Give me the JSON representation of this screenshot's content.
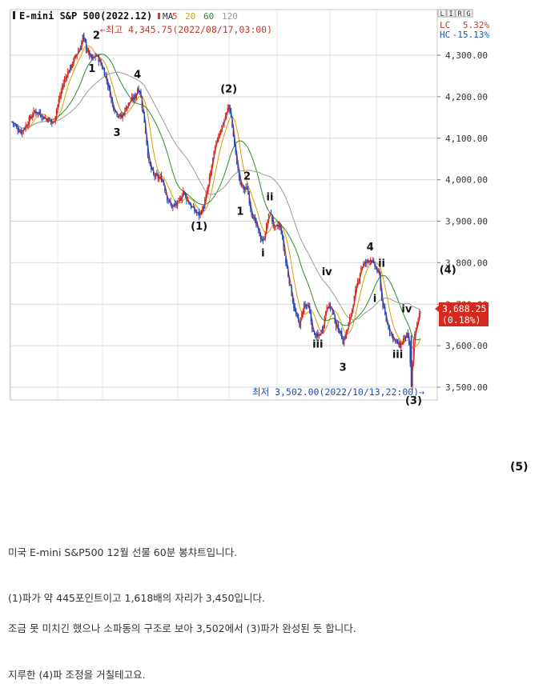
{
  "chart_data": {
    "type": "candlestick",
    "title": "E-mini S&P 500(2022.12)",
    "ma_label": "MA",
    "moving_averages": [
      {
        "period": "5",
        "color": "#d93a2b"
      },
      {
        "period": "20",
        "color": "#d6a000"
      },
      {
        "period": "60",
        "color": "#2e8b2e"
      },
      {
        "period": "120",
        "color": "#9a9a9a"
      }
    ],
    "top_right_tags": [
      "L",
      "I",
      "R",
      "G"
    ],
    "lc_label": "LC",
    "lc_value": "5.32%",
    "hc_label": "HC",
    "hc_value": "-15.13%",
    "high_annotation": "←최고 4,345.75(2022/08/17,03:00)",
    "low_annotation": "최저 3,502.00(2022/10/13,22:00)→",
    "last_price": "3,688.25",
    "last_change": "(0.18%)",
    "ylim": [
      3500,
      4400
    ],
    "y_ticks": [
      "4,300.00",
      "4,200.00",
      "4,100.00",
      "4,000.00",
      "3,900.00",
      "3,800.00",
      "3,700.00",
      "3,600.00",
      "3,500.00"
    ],
    "y_tick_values": [
      4300,
      4200,
      4100,
      4000,
      3900,
      3800,
      3700,
      3600,
      3500
    ],
    "price_path": [
      [
        0,
        4140
      ],
      [
        4,
        4125
      ],
      [
        8,
        4115
      ],
      [
        12,
        4130
      ],
      [
        16,
        4150
      ],
      [
        20,
        4165
      ],
      [
        24,
        4160
      ],
      [
        28,
        4150
      ],
      [
        32,
        4145
      ],
      [
        36,
        4135
      ],
      [
        40,
        4180
      ],
      [
        44,
        4225
      ],
      [
        48,
        4255
      ],
      [
        52,
        4275
      ],
      [
        56,
        4300
      ],
      [
        60,
        4320
      ],
      [
        62,
        4345
      ],
      [
        66,
        4310
      ],
      [
        70,
        4290
      ],
      [
        74,
        4300
      ],
      [
        76,
        4290
      ],
      [
        80,
        4265
      ],
      [
        84,
        4230
      ],
      [
        88,
        4180
      ],
      [
        92,
        4160
      ],
      [
        96,
        4150
      ],
      [
        100,
        4175
      ],
      [
        104,
        4190
      ],
      [
        108,
        4200
      ],
      [
        110,
        4220
      ],
      [
        112,
        4215
      ],
      [
        116,
        4140
      ],
      [
        120,
        4040
      ],
      [
        124,
        4010
      ],
      [
        128,
        4005
      ],
      [
        132,
        4000
      ],
      [
        136,
        3955
      ],
      [
        140,
        3935
      ],
      [
        144,
        3940
      ],
      [
        148,
        3955
      ],
      [
        150,
        3975
      ],
      [
        152,
        3960
      ],
      [
        156,
        3940
      ],
      [
        160,
        3925
      ],
      [
        164,
        3915
      ],
      [
        168,
        3935
      ],
      [
        172,
        3985
      ],
      [
        176,
        4050
      ],
      [
        180,
        4100
      ],
      [
        184,
        4130
      ],
      [
        188,
        4160
      ],
      [
        190,
        4180
      ],
      [
        192,
        4150
      ],
      [
        196,
        4060
      ],
      [
        200,
        3990
      ],
      [
        204,
        3975
      ],
      [
        206,
        3980
      ],
      [
        210,
        3920
      ],
      [
        214,
        3890
      ],
      [
        218,
        3860
      ],
      [
        220,
        3850
      ],
      [
        224,
        3900
      ],
      [
        226,
        3925
      ],
      [
        230,
        3880
      ],
      [
        234,
        3890
      ],
      [
        236,
        3875
      ],
      [
        240,
        3800
      ],
      [
        244,
        3740
      ],
      [
        248,
        3680
      ],
      [
        252,
        3650
      ],
      [
        256,
        3700
      ],
      [
        260,
        3690
      ],
      [
        264,
        3630
      ],
      [
        268,
        3620
      ],
      [
        272,
        3640
      ],
      [
        276,
        3700
      ],
      [
        280,
        3690
      ],
      [
        284,
        3650
      ],
      [
        288,
        3630
      ],
      [
        290,
        3610
      ],
      [
        294,
        3640
      ],
      [
        298,
        3690
      ],
      [
        302,
        3740
      ],
      [
        306,
        3790
      ],
      [
        310,
        3800
      ],
      [
        314,
        3810
      ],
      [
        318,
        3790
      ],
      [
        322,
        3770
      ],
      [
        324,
        3710
      ],
      [
        328,
        3660
      ],
      [
        332,
        3630
      ],
      [
        336,
        3610
      ],
      [
        340,
        3600
      ],
      [
        344,
        3620
      ],
      [
        346,
        3625
      ],
      [
        348,
        3605
      ],
      [
        350,
        3502
      ],
      [
        352,
        3610
      ],
      [
        356,
        3665
      ],
      [
        358,
        3688
      ]
    ],
    "wave_labels": [
      {
        "text": "1",
        "x": 70,
        "y": 4260
      },
      {
        "text": "2",
        "x": 74,
        "y": 4340
      },
      {
        "text": "4",
        "x": 110,
        "y": 4245
      },
      {
        "text": "3",
        "x": 92,
        "y": 4105
      },
      {
        "text": "(1)",
        "x": 164,
        "y": 3880
      },
      {
        "text": "(2)",
        "x": 190,
        "y": 4210
      },
      {
        "text": "2",
        "x": 206,
        "y": 4000
      },
      {
        "text": "1",
        "x": 200,
        "y": 3915
      },
      {
        "text": "ii",
        "x": 226,
        "y": 3950
      },
      {
        "text": "i",
        "x": 220,
        "y": 3815
      },
      {
        "text": "iv",
        "x": 276,
        "y": 3770
      },
      {
        "text": "iii",
        "x": 268,
        "y": 3595
      },
      {
        "text": "3",
        "x": 290,
        "y": 3540
      },
      {
        "text": "4",
        "x": 314,
        "y": 3830
      },
      {
        "text": "ii",
        "x": 324,
        "y": 3790
      },
      {
        "text": "i",
        "x": 318,
        "y": 3705
      },
      {
        "text": "iv",
        "x": 346,
        "y": 3680
      },
      {
        "text": "iii",
        "x": 338,
        "y": 3570
      },
      {
        "text": "(4)",
        "x": 382,
        "y": 3775
      },
      {
        "text": "(3)",
        "x": 352,
        "y": 3460
      }
    ]
  },
  "side_label": "(5)",
  "text_lines": [
    "미국 E-mini S&P500 12월 선물 60분 봉챠트입니다.",
    "(1)파가 약 445포인트이고 1,618배의 자리가 3,450입니다.",
    "조금 못 미치긴 했으나 소파동의 구조로 보아 3,502에서 (3)파가 완성된 듯 합니다.",
    "지루한 (4)파 조정을 거칠테고요."
  ]
}
